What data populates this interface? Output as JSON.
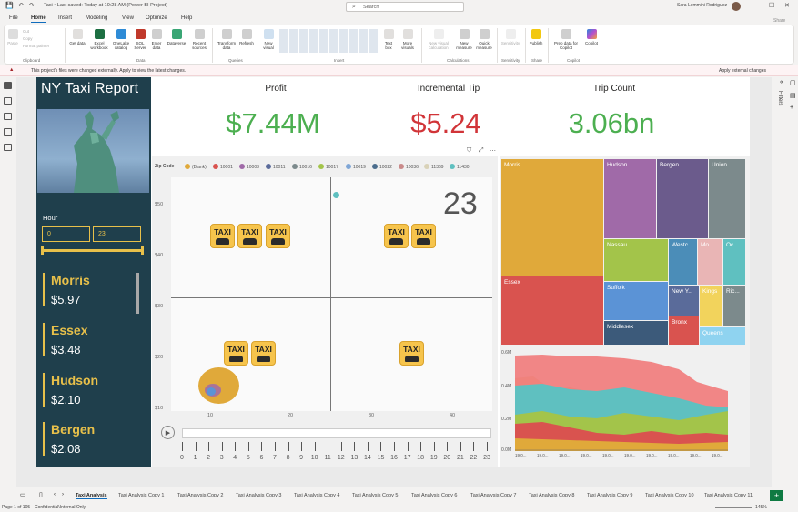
{
  "titlebar": {
    "title": "Taxi • Last saved: Today at 10:28 AM (Power BI Project)",
    "search_placeholder": "Search",
    "user": "Sara Lemmini Rodriguez"
  },
  "menu": [
    "File",
    "Home",
    "Insert",
    "Modeling",
    "View",
    "Optimize",
    "Help"
  ],
  "ribbon": {
    "buttons": [
      {
        "label": "Paste",
        "group": "Clipboard"
      },
      {
        "label": "Cut",
        "group": "Clipboard"
      },
      {
        "label": "Copy",
        "group": "Clipboard"
      },
      {
        "label": "Format painter",
        "group": "Clipboard"
      },
      {
        "label": "Get data",
        "group": "Data"
      },
      {
        "label": "Excel workbook",
        "group": "Data"
      },
      {
        "label": "OneLake catalog",
        "group": "Data"
      },
      {
        "label": "SQL Server",
        "group": "Data"
      },
      {
        "label": "Enter data",
        "group": "Data"
      },
      {
        "label": "Dataverse",
        "group": "Data"
      },
      {
        "label": "Recent sources",
        "group": "Data"
      },
      {
        "label": "Transform data",
        "group": "Queries"
      },
      {
        "label": "Refresh",
        "group": "Queries"
      },
      {
        "label": "New visual",
        "group": "Insert"
      },
      {
        "label": "Text box",
        "group": "Insert"
      },
      {
        "label": "More visuals",
        "group": "Insert"
      },
      {
        "label": "New visual calculation",
        "group": "Calculations"
      },
      {
        "label": "New measure",
        "group": "Calculations"
      },
      {
        "label": "Quick measure",
        "group": "Calculations"
      },
      {
        "label": "Sensitivity",
        "group": "Sensitivity"
      },
      {
        "label": "Publish",
        "group": "Share"
      },
      {
        "label": "Prep data for Copilot",
        "group": "Copilot"
      },
      {
        "label": "Copilot",
        "group": "Copilot"
      }
    ],
    "groups": [
      "Clipboard",
      "Data",
      "Queries",
      "Insert",
      "Calculations",
      "Sensitivity",
      "Share",
      "Copilot"
    ],
    "share_label": "Share"
  },
  "warning": {
    "message": "This project's files were changed externally. Apply to view the latest changes.",
    "action": "Apply external changes"
  },
  "report": {
    "title": "NY Taxi Report",
    "kpis": [
      {
        "label": "Profit",
        "value": "$7.44M",
        "color": "#4caf50"
      },
      {
        "label": "Incremental Tip",
        "value": "$5.24",
        "color": "#d13438"
      },
      {
        "label": "Trip Count",
        "value": "3.06bn",
        "color": "#4caf50"
      }
    ],
    "hour": {
      "label": "Hour",
      "min": "0",
      "max": "23"
    },
    "cities": [
      {
        "name": "Morris",
        "value": "$5.97"
      },
      {
        "name": "Essex",
        "value": "$3.48"
      },
      {
        "name": "Hudson",
        "value": "$2.10"
      },
      {
        "name": "Bergen",
        "value": "$2.08"
      }
    ],
    "scatter": {
      "legend_title": "Zip Code",
      "legend": [
        {
          "name": "(Blank)",
          "color": "#e0a93a"
        },
        {
          "name": "10001",
          "color": "#d9534f"
        },
        {
          "name": "10003",
          "color": "#a06aa8"
        },
        {
          "name": "10011",
          "color": "#5a6b9a"
        },
        {
          "name": "10016",
          "color": "#7c8a8c"
        },
        {
          "name": "10017",
          "color": "#a3c44a"
        },
        {
          "name": "10019",
          "color": "#7fa6d6"
        },
        {
          "name": "10022",
          "color": "#4b6d8d"
        },
        {
          "name": "10036",
          "color": "#c98a8a"
        },
        {
          "name": "11369",
          "color": "#d9d2b8"
        },
        {
          "name": "11430",
          "color": "#5fc0c0"
        }
      ],
      "play_value": "23",
      "y_ticks": [
        "$50",
        "$40",
        "$30",
        "$20",
        "$10"
      ],
      "x_ticks": [
        "10",
        "20",
        "30",
        "40"
      ],
      "taxi_label": "TAXI",
      "play_axis": [
        "0",
        "1",
        "2",
        "3",
        "4",
        "5",
        "6",
        "7",
        "8",
        "9",
        "10",
        "11",
        "12",
        "13",
        "14",
        "15",
        "16",
        "17",
        "18",
        "19",
        "20",
        "21",
        "22",
        "23"
      ]
    },
    "treemap": [
      {
        "name": "Morris",
        "color": "#e0a93a"
      },
      {
        "name": "Hudson",
        "color": "#a06aa8"
      },
      {
        "name": "Bergen",
        "color": "#6b5b8c"
      },
      {
        "name": "Union",
        "color": "#7c8a8c"
      },
      {
        "name": "Essex",
        "color": "#d9534f"
      },
      {
        "name": "Nassau",
        "color": "#a3c44a"
      },
      {
        "name": "Westc...",
        "color": "#4b8db8"
      },
      {
        "name": "Mo...",
        "color": "#e9b5b5"
      },
      {
        "name": "Oc...",
        "color": "#5fc0c0"
      },
      {
        "name": "Suffolk",
        "color": "#5b93d6"
      },
      {
        "name": "New Y...",
        "color": "#5a6b9a"
      },
      {
        "name": "Kings",
        "color": "#f2d35c"
      },
      {
        "name": "Ric...",
        "color": "#7c8a8c"
      },
      {
        "name": "Middlesex",
        "color": "#3c5a7a"
      },
      {
        "name": "Bronx",
        "color": "#d9534f"
      },
      {
        "name": "Queens",
        "color": "#8fd3f0"
      }
    ],
    "area_y": [
      "0.6M",
      "0.4M",
      "0.2M",
      "0.0M"
    ],
    "area_x": [
      "19.0...",
      "19.0...",
      "19.0...",
      "19.0...",
      "19.0...",
      "19.0...",
      "19.0...",
      "19.0...",
      "19.0...",
      "19.0..."
    ]
  },
  "tabs": [
    "Taxi Analysis",
    "Taxi Analysis Copy 1",
    "Taxi Analysis Copy 2",
    "Taxi Analysis Copy 3",
    "Taxi Analysis Copy 4",
    "Taxi Analysis Copy 5",
    "Taxi Analysis Copy 6",
    "Taxi Analysis Copy 7",
    "Taxi Analysis Copy 8",
    "Taxi Analysis Copy 9",
    "Taxi Analysis Copy 10",
    "Taxi Analysis Copy 11"
  ],
  "status": {
    "page": "Page 1 of 105",
    "sensitivity": "Confidential\\Internal Only",
    "zoom": "145%"
  },
  "filters_label": "Filters"
}
